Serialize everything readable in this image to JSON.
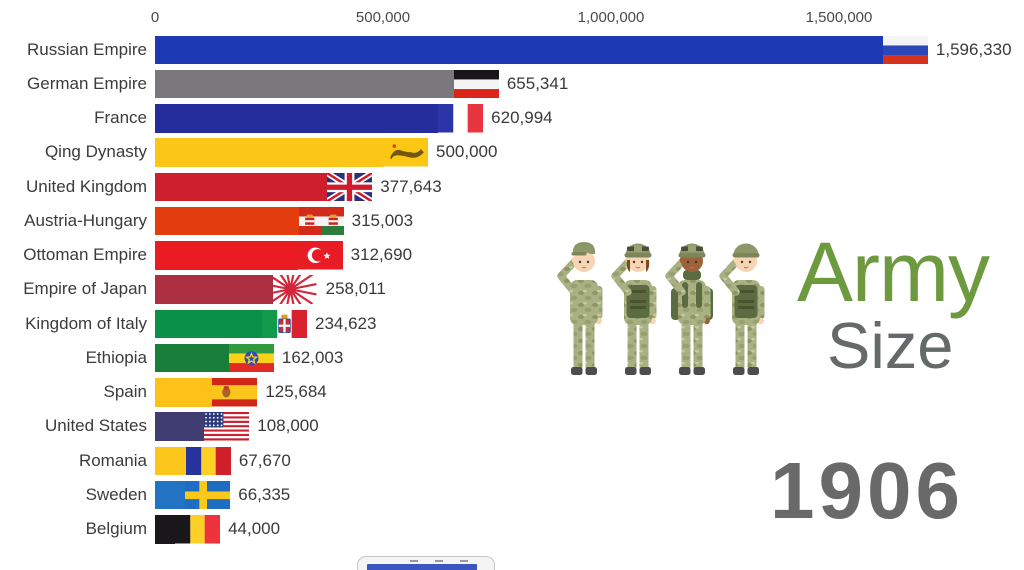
{
  "overlay": {
    "title_word1": "Army",
    "title_word2": "Size",
    "title_color1": "#6d9a3e",
    "title_color2": "#65696a",
    "year": "1906",
    "year_color": "#696969",
    "soldier_icons": [
      "soldier-cap-icon",
      "soldier-helmet-female-icon",
      "soldier-backpack-icon",
      "soldier-helmet-vest-icon"
    ]
  },
  "chart_data": {
    "type": "bar",
    "orientation": "horizontal",
    "title": "Army Size",
    "subtitle_year": "1906",
    "xlabel": "",
    "ylabel": "",
    "axis_range": [
      0,
      1900000
    ],
    "grid": false,
    "x_axis": {
      "ticks": [
        {
          "value": 0,
          "label": "0"
        },
        {
          "value": 500000,
          "label": "500,000"
        },
        {
          "value": 1000000,
          "label": "1,000,000"
        },
        {
          "value": 1500000,
          "label": "1,500,000"
        }
      ]
    },
    "entries": [
      {
        "label": "Russian Empire",
        "value": 1596330,
        "value_label": "1,596,330",
        "flag": "russia",
        "color": "#1d39b4"
      },
      {
        "label": "German Empire",
        "value": 655341,
        "value_label": "655,341",
        "flag": "german_empire",
        "color": "#7a787c"
      },
      {
        "label": "France",
        "value": 620994,
        "value_label": "620,994",
        "flag": "france",
        "color": "#252d9d"
      },
      {
        "label": "Qing Dynasty",
        "value": 500000,
        "value_label": "500,000",
        "flag": "qing",
        "color": "#fcc619"
      },
      {
        "label": "United Kingdom",
        "value": 377643,
        "value_label": "377,643",
        "flag": "uk",
        "color": "#cd1f2d"
      },
      {
        "label": "Austria-Hungary",
        "value": 315003,
        "value_label": "315,003",
        "flag": "austria_hungary",
        "color": "#e33d0f"
      },
      {
        "label": "Ottoman Empire",
        "value": 312690,
        "value_label": "312,690",
        "flag": "ottoman",
        "color": "#ea1b23"
      },
      {
        "label": "Empire of Japan",
        "value": 258011,
        "value_label": "258,011",
        "flag": "japan",
        "color": "#ad3042"
      },
      {
        "label": "Kingdom of Italy",
        "value": 234623,
        "value_label": "234,623",
        "flag": "italy",
        "color": "#0b9147"
      },
      {
        "label": "Ethiopia",
        "value": 162003,
        "value_label": "162,003",
        "flag": "ethiopia",
        "color": "#187e39"
      },
      {
        "label": "Spain",
        "value": 125684,
        "value_label": "125,684",
        "flag": "spain",
        "color": "#fcc21a"
      },
      {
        "label": "United States",
        "value": 108000,
        "value_label": "108,000",
        "flag": "usa",
        "color": "#403d72"
      },
      {
        "label": "Romania",
        "value": 67670,
        "value_label": "67,670",
        "flag": "romania",
        "color": "#fcc61d"
      },
      {
        "label": "Sweden",
        "value": 66335,
        "value_label": "66,335",
        "flag": "sweden",
        "color": "#2273c4"
      },
      {
        "label": "Belgium",
        "value": 44000,
        "value_label": "44,000",
        "flag": "belgium",
        "color": "#1a171b"
      }
    ]
  }
}
